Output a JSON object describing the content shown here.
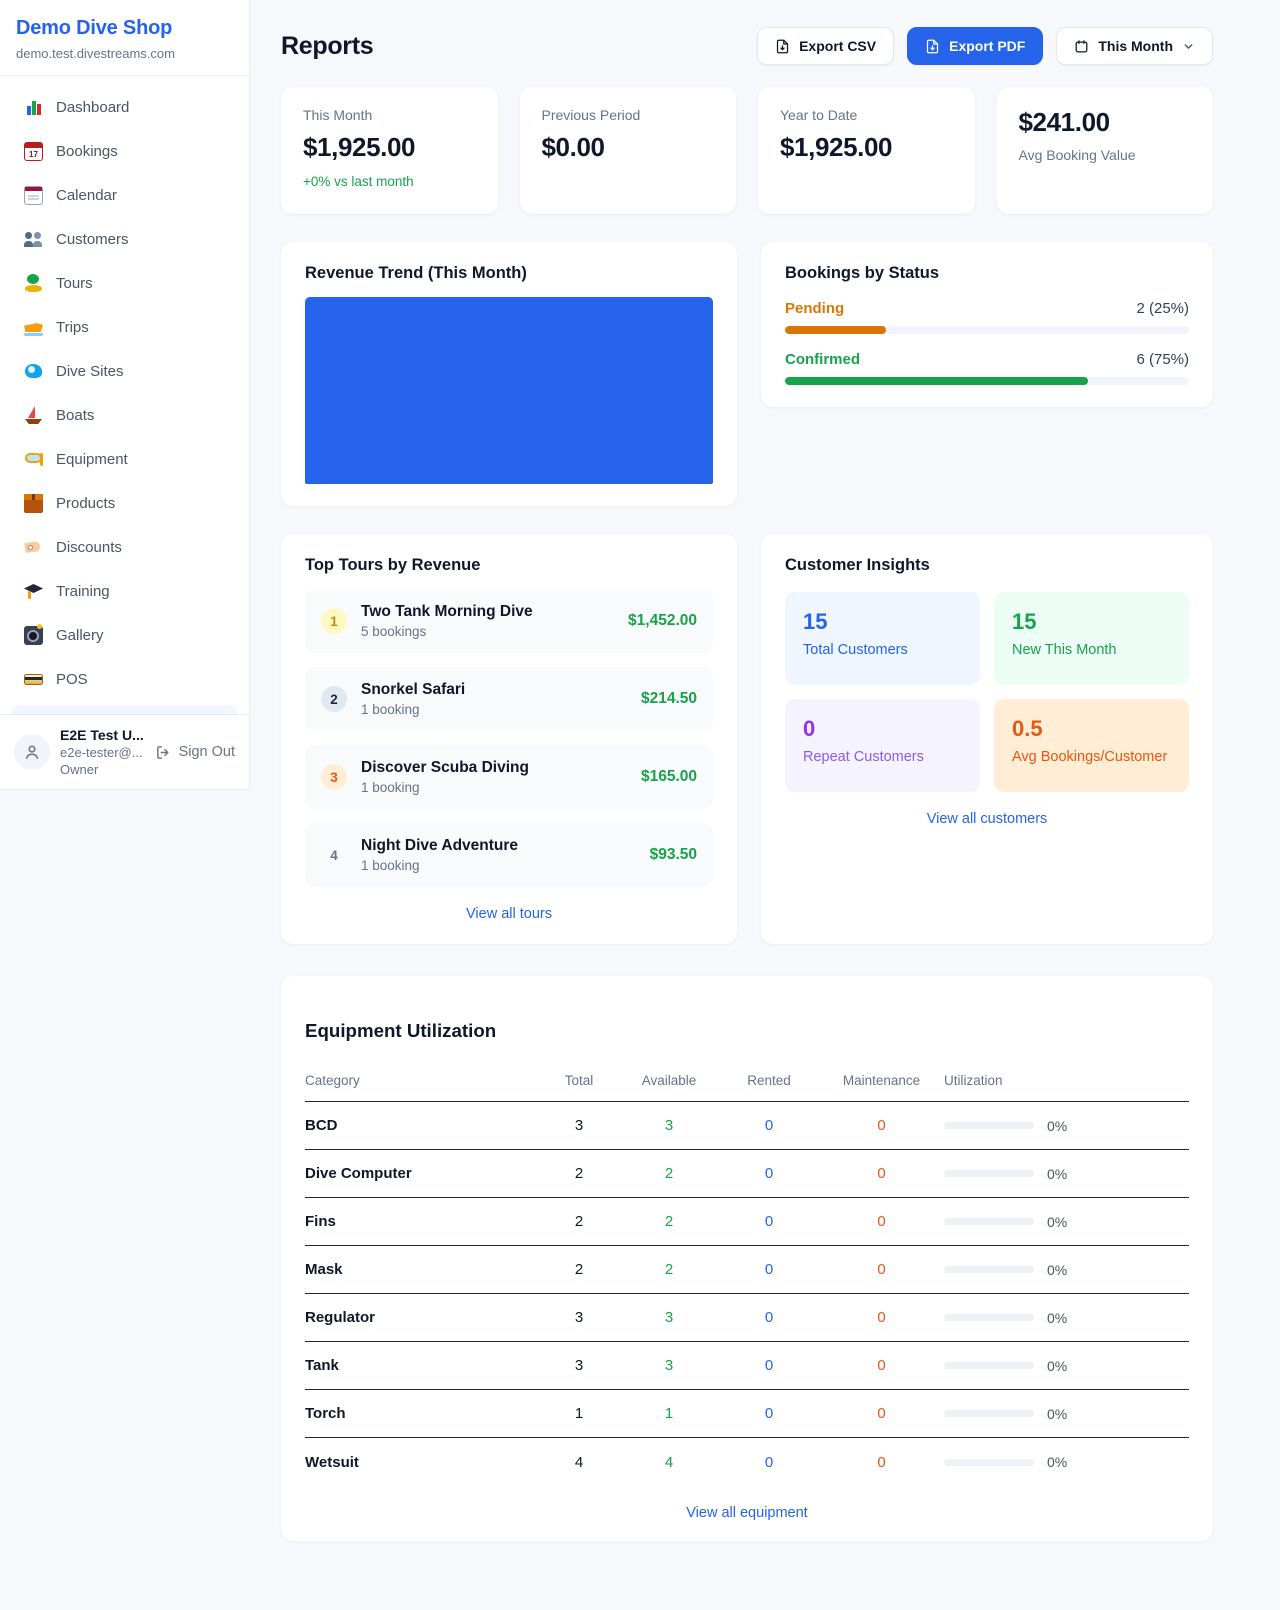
{
  "app": {
    "accent_color": "#2563eb",
    "money_green": "#16a34a"
  },
  "sidebar": {
    "title": "Demo Dive Shop",
    "subdomain": "demo.test.divestreams.com",
    "items": [
      {
        "label": "Dashboard",
        "icon": "dashboard",
        "icon_name": "bar-chart-icon",
        "name": "sidebar-item-dashboard"
      },
      {
        "label": "Bookings",
        "icon": "bookings",
        "icon_name": "calendar-date-icon",
        "name": "sidebar-item-bookings"
      },
      {
        "label": "Calendar",
        "icon": "calendar",
        "icon_name": "calendar-pad-icon",
        "name": "sidebar-item-calendar"
      },
      {
        "label": "Customers",
        "icon": "customers",
        "icon_name": "people-icon",
        "name": "sidebar-item-customers"
      },
      {
        "label": "Tours",
        "icon": "tours",
        "icon_name": "island-icon",
        "name": "sidebar-item-tours"
      },
      {
        "label": "Trips",
        "icon": "trips",
        "icon_name": "speedboat-icon",
        "name": "sidebar-item-trips"
      },
      {
        "label": "Dive Sites",
        "icon": "dive-sites",
        "icon_name": "wave-icon",
        "name": "sidebar-item-dive-sites"
      },
      {
        "label": "Boats",
        "icon": "boats",
        "icon_name": "sailboat-icon",
        "name": "sidebar-item-boats"
      },
      {
        "label": "Equipment",
        "icon": "equipment",
        "icon_name": "dive-mask-icon",
        "name": "sidebar-item-equipment"
      },
      {
        "label": "Products",
        "icon": "products",
        "icon_name": "package-icon",
        "name": "sidebar-item-products"
      },
      {
        "label": "Discounts",
        "icon": "discounts",
        "icon_name": "tag-icon",
        "name": "sidebar-item-discounts"
      },
      {
        "label": "Training",
        "icon": "training",
        "icon_name": "graduation-cap-icon",
        "name": "sidebar-item-training"
      },
      {
        "label": "Gallery",
        "icon": "gallery",
        "icon_name": "camera-icon",
        "name": "sidebar-item-gallery"
      },
      {
        "label": "POS",
        "icon": "pos",
        "icon_name": "credit-card-icon",
        "name": "sidebar-item-pos"
      }
    ],
    "user": {
      "name": "E2E Test U...",
      "email": "e2e-tester@...",
      "role": "Owner",
      "signout_label": "Sign Out"
    }
  },
  "header": {
    "title": "Reports",
    "export_csv_label": "Export CSV",
    "export_pdf_label": "Export PDF",
    "period_label": "This Month"
  },
  "stats": {
    "cards": [
      {
        "label": "This Month",
        "value": "$1,925.00",
        "delta": "+0% vs last month"
      },
      {
        "label": "Previous Period",
        "value": "$0.00"
      },
      {
        "label": "Year to Date",
        "value": "$1,925.00"
      },
      {
        "label": "Avg Booking Value",
        "value": "$241.00"
      }
    ]
  },
  "revenue_trend": {
    "title": "Revenue Trend (This Month)",
    "chart_data": {
      "type": "bar",
      "values": [
        1925
      ],
      "bar_color": "#2563eb",
      "bar_fill_percent": 100
    }
  },
  "bookings_by_status": {
    "title": "Bookings by Status",
    "items": [
      {
        "label": "Pending",
        "count_text": "2 (25%)",
        "percent": 25
      },
      {
        "label": "Confirmed",
        "count_text": "6 (75%)",
        "percent": 75
      }
    ]
  },
  "top_tours": {
    "title": "Top Tours by Revenue",
    "items": [
      {
        "rank": "1",
        "name": "Two Tank Morning Dive",
        "bookings": "5 bookings",
        "revenue": "$1,452.00"
      },
      {
        "rank": "2",
        "name": "Snorkel Safari",
        "bookings": "1 booking",
        "revenue": "$214.50"
      },
      {
        "rank": "3",
        "name": "Discover Scuba Diving",
        "bookings": "1 booking",
        "revenue": "$165.00"
      },
      {
        "rank": "4",
        "name": "Night Dive Adventure",
        "bookings": "1 booking",
        "revenue": "$93.50"
      }
    ],
    "view_all": "View all tours"
  },
  "customer_insights": {
    "title": "Customer Insights",
    "tiles": [
      {
        "value": "15",
        "label": "Total Customers"
      },
      {
        "value": "15",
        "label": "New This Month"
      },
      {
        "value": "0",
        "label": "Repeat Customers"
      },
      {
        "value": "0.5",
        "label": "Avg Bookings/Customer"
      }
    ],
    "view_all": "View all customers"
  },
  "equipment": {
    "title": "Equipment Utilization",
    "columns": [
      "Category",
      "Total",
      "Available",
      "Rented",
      "Maintenance",
      "Utilization"
    ],
    "rows": [
      {
        "category": "BCD",
        "total": "3",
        "available": "3",
        "rented": "0",
        "maintenance": "0",
        "utilization": "0%",
        "utilization_percent": 0
      },
      {
        "category": "Dive Computer",
        "total": "2",
        "available": "2",
        "rented": "0",
        "maintenance": "0",
        "utilization": "0%",
        "utilization_percent": 0
      },
      {
        "category": "Fins",
        "total": "2",
        "available": "2",
        "rented": "0",
        "maintenance": "0",
        "utilization": "0%",
        "utilization_percent": 0
      },
      {
        "category": "Mask",
        "total": "2",
        "available": "2",
        "rented": "0",
        "maintenance": "0",
        "utilization": "0%",
        "utilization_percent": 0
      },
      {
        "category": "Regulator",
        "total": "3",
        "available": "3",
        "rented": "0",
        "maintenance": "0",
        "utilization": "0%",
        "utilization_percent": 0
      },
      {
        "category": "Tank",
        "total": "3",
        "available": "3",
        "rented": "0",
        "maintenance": "0",
        "utilization": "0%",
        "utilization_percent": 0
      },
      {
        "category": "Torch",
        "total": "1",
        "available": "1",
        "rented": "0",
        "maintenance": "0",
        "utilization": "0%",
        "utilization_percent": 0
      },
      {
        "category": "Wetsuit",
        "total": "4",
        "available": "4",
        "rented": "0",
        "maintenance": "0",
        "utilization": "0%",
        "utilization_percent": 0
      }
    ],
    "view_all": "View all equipment"
  }
}
